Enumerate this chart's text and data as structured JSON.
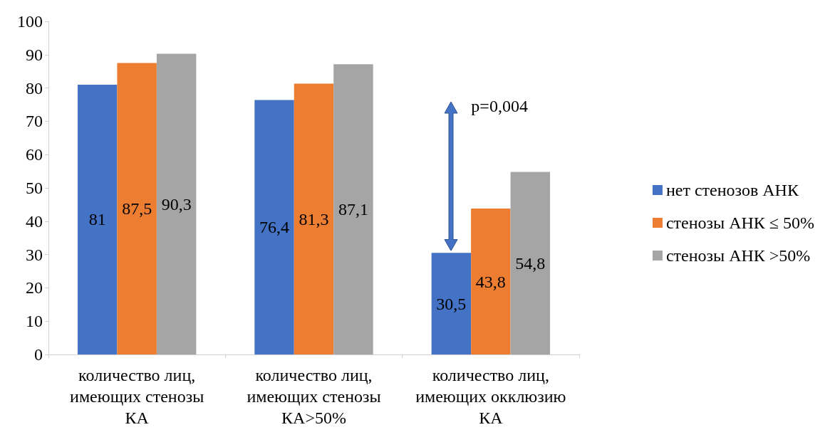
{
  "chart_data": {
    "type": "bar",
    "categories": [
      "количество лиц, имеющих стенозы КА",
      "количество лиц, имеющих стенозы КА>50%",
      "количество лиц, имеющих окклюзию КА"
    ],
    "series": [
      {
        "name": "нет стенозов АНК",
        "color": "#4472c4",
        "values": [
          81,
          76.4,
          30.5
        ],
        "value_labels": [
          "81",
          "76,4",
          "30,5"
        ]
      },
      {
        "name": "стенозы АНК ≤ 50%",
        "color": "#ed7d31",
        "values": [
          87.5,
          81.3,
          43.8
        ],
        "value_labels": [
          "87,5",
          "81,3",
          "43,8"
        ]
      },
      {
        "name": "стенозы АНК >50%",
        "color": "#a5a5a5",
        "values": [
          90.3,
          87.1,
          54.8
        ],
        "value_labels": [
          "90,3",
          "87,1",
          "54,8"
        ]
      }
    ],
    "ylim": [
      0,
      100
    ],
    "yticks": [
      0,
      10,
      20,
      30,
      40,
      50,
      60,
      70,
      80,
      90,
      100
    ],
    "grid": false,
    "legend": "right",
    "annotations": [
      "p=0,004"
    ]
  }
}
